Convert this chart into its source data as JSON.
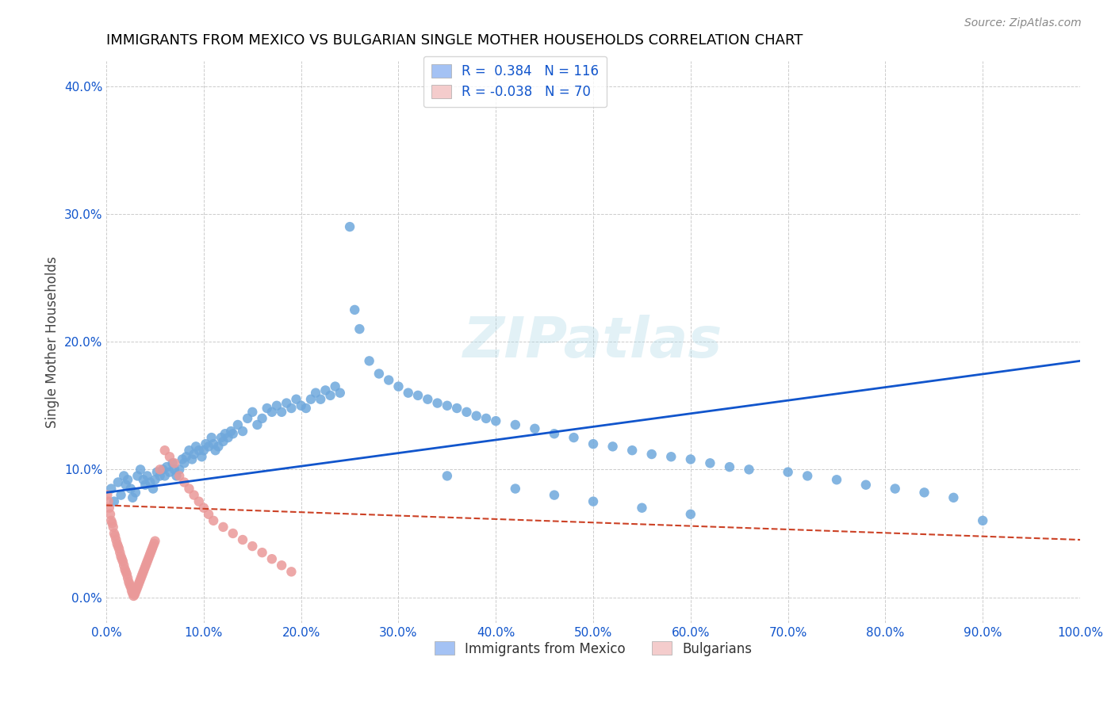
{
  "title": "IMMIGRANTS FROM MEXICO VS BULGARIAN SINGLE MOTHER HOUSEHOLDS CORRELATION CHART",
  "source": "Source: ZipAtlas.com",
  "xlabel": "",
  "ylabel": "Single Mother Households",
  "xlim": [
    0.0,
    1.0
  ],
  "ylim": [
    -0.02,
    0.42
  ],
  "x_ticks": [
    0.0,
    0.1,
    0.2,
    0.3,
    0.4,
    0.5,
    0.6,
    0.7,
    0.8,
    0.9,
    1.0
  ],
  "y_ticks": [
    0.0,
    0.1,
    0.2,
    0.3,
    0.4
  ],
  "blue_color": "#6fa8dc",
  "pink_color": "#ea9999",
  "blue_line_color": "#1155cc",
  "pink_line_color": "#cc4125",
  "legend_blue_color": "#a4c2f4",
  "legend_pink_color": "#f4cccc",
  "R_blue": 0.384,
  "N_blue": 116,
  "R_pink": -0.038,
  "N_pink": 70,
  "background_color": "#ffffff",
  "grid_color": "#cccccc",
  "title_color": "#000000",
  "axis_label_color": "#000000",
  "tick_label_color": "#1155cc",
  "blue_scatter_x": [
    0.005,
    0.008,
    0.012,
    0.015,
    0.018,
    0.02,
    0.022,
    0.025,
    0.027,
    0.03,
    0.032,
    0.035,
    0.038,
    0.04,
    0.042,
    0.045,
    0.048,
    0.05,
    0.052,
    0.055,
    0.058,
    0.06,
    0.062,
    0.065,
    0.068,
    0.07,
    0.072,
    0.075,
    0.078,
    0.08,
    0.082,
    0.085,
    0.088,
    0.09,
    0.092,
    0.095,
    0.098,
    0.1,
    0.102,
    0.105,
    0.108,
    0.11,
    0.112,
    0.115,
    0.118,
    0.12,
    0.122,
    0.125,
    0.128,
    0.13,
    0.135,
    0.14,
    0.145,
    0.15,
    0.155,
    0.16,
    0.165,
    0.17,
    0.175,
    0.18,
    0.185,
    0.19,
    0.195,
    0.2,
    0.205,
    0.21,
    0.215,
    0.22,
    0.225,
    0.23,
    0.235,
    0.24,
    0.25,
    0.255,
    0.26,
    0.27,
    0.28,
    0.29,
    0.3,
    0.31,
    0.32,
    0.33,
    0.34,
    0.35,
    0.36,
    0.37,
    0.38,
    0.39,
    0.4,
    0.42,
    0.44,
    0.46,
    0.48,
    0.5,
    0.52,
    0.54,
    0.56,
    0.58,
    0.6,
    0.62,
    0.64,
    0.66,
    0.7,
    0.72,
    0.75,
    0.78,
    0.81,
    0.84,
    0.87,
    0.9,
    0.35,
    0.42,
    0.46,
    0.5,
    0.55,
    0.6
  ],
  "blue_scatter_y": [
    0.085,
    0.075,
    0.09,
    0.08,
    0.095,
    0.088,
    0.092,
    0.085,
    0.078,
    0.082,
    0.095,
    0.1,
    0.092,
    0.088,
    0.095,
    0.09,
    0.085,
    0.092,
    0.098,
    0.095,
    0.1,
    0.095,
    0.102,
    0.098,
    0.105,
    0.1,
    0.095,
    0.1,
    0.108,
    0.105,
    0.11,
    0.115,
    0.108,
    0.112,
    0.118,
    0.115,
    0.11,
    0.115,
    0.12,
    0.118,
    0.125,
    0.12,
    0.115,
    0.118,
    0.125,
    0.122,
    0.128,
    0.125,
    0.13,
    0.128,
    0.135,
    0.13,
    0.14,
    0.145,
    0.135,
    0.14,
    0.148,
    0.145,
    0.15,
    0.145,
    0.152,
    0.148,
    0.155,
    0.15,
    0.148,
    0.155,
    0.16,
    0.155,
    0.162,
    0.158,
    0.165,
    0.16,
    0.29,
    0.225,
    0.21,
    0.185,
    0.175,
    0.17,
    0.165,
    0.16,
    0.158,
    0.155,
    0.152,
    0.15,
    0.148,
    0.145,
    0.142,
    0.14,
    0.138,
    0.135,
    0.132,
    0.128,
    0.125,
    0.12,
    0.118,
    0.115,
    0.112,
    0.11,
    0.108,
    0.105,
    0.102,
    0.1,
    0.098,
    0.095,
    0.092,
    0.088,
    0.085,
    0.082,
    0.078,
    0.06,
    0.095,
    0.085,
    0.08,
    0.075,
    0.07,
    0.065
  ],
  "pink_scatter_x": [
    0.001,
    0.002,
    0.003,
    0.004,
    0.005,
    0.006,
    0.007,
    0.008,
    0.009,
    0.01,
    0.011,
    0.012,
    0.013,
    0.014,
    0.015,
    0.016,
    0.017,
    0.018,
    0.019,
    0.02,
    0.021,
    0.022,
    0.023,
    0.024,
    0.025,
    0.026,
    0.027,
    0.028,
    0.029,
    0.03,
    0.031,
    0.032,
    0.033,
    0.034,
    0.035,
    0.036,
    0.037,
    0.038,
    0.039,
    0.04,
    0.041,
    0.042,
    0.043,
    0.044,
    0.045,
    0.046,
    0.047,
    0.048,
    0.049,
    0.05,
    0.055,
    0.06,
    0.065,
    0.07,
    0.075,
    0.08,
    0.085,
    0.09,
    0.095,
    0.1,
    0.105,
    0.11,
    0.12,
    0.13,
    0.14,
    0.15,
    0.16,
    0.17,
    0.18,
    0.19
  ],
  "pink_scatter_y": [
    0.08,
    0.075,
    0.07,
    0.065,
    0.06,
    0.058,
    0.055,
    0.05,
    0.048,
    0.045,
    0.042,
    0.04,
    0.038,
    0.035,
    0.032,
    0.03,
    0.028,
    0.025,
    0.022,
    0.02,
    0.018,
    0.015,
    0.012,
    0.01,
    0.008,
    0.005,
    0.003,
    0.001,
    0.002,
    0.004,
    0.006,
    0.008,
    0.01,
    0.012,
    0.014,
    0.016,
    0.018,
    0.02,
    0.022,
    0.024,
    0.026,
    0.028,
    0.03,
    0.032,
    0.034,
    0.036,
    0.038,
    0.04,
    0.042,
    0.044,
    0.1,
    0.115,
    0.11,
    0.105,
    0.095,
    0.09,
    0.085,
    0.08,
    0.075,
    0.07,
    0.065,
    0.06,
    0.055,
    0.05,
    0.045,
    0.04,
    0.035,
    0.03,
    0.025,
    0.02
  ]
}
